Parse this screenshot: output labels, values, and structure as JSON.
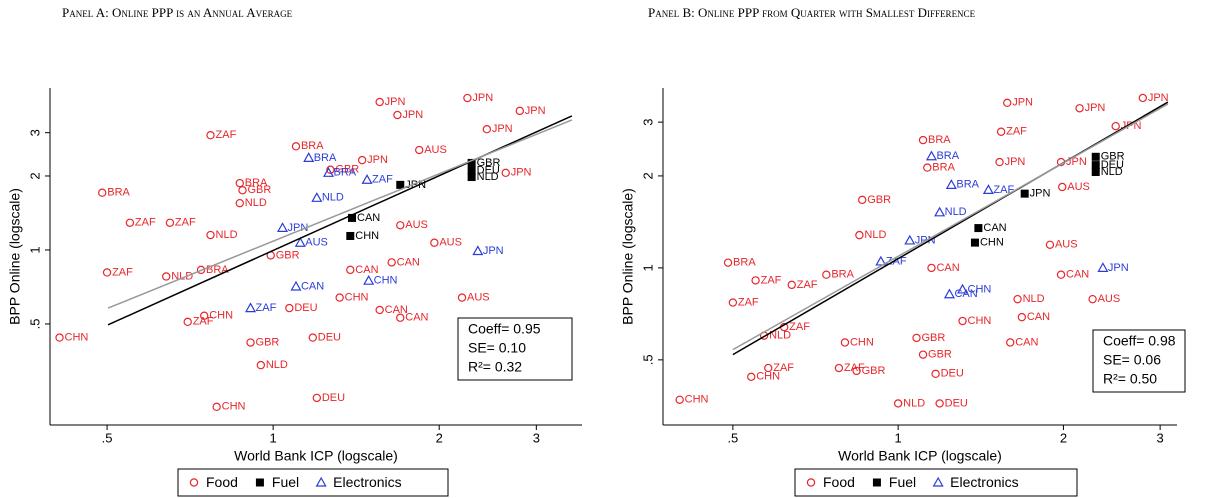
{
  "chart_data": [
    {
      "type": "scatter",
      "title": "Panel A: Online PPP is an Annual Average",
      "xlabel": "World Bank ICP (logscale)",
      "ylabel": "BPP Online (logscale)",
      "xscale": "log",
      "yscale": "log",
      "xlim": [
        0.394,
        3.63
      ],
      "ylim": [
        0.194,
        4.56
      ],
      "xticks": [
        {
          "value": 0.5,
          "label": ".5"
        },
        1,
        2,
        3
      ],
      "yticks": [
        {
          "value": 0.5,
          "label": ".5"
        },
        1,
        2,
        3
      ],
      "series": [
        {
          "name": "Food",
          "color": "#e8262b",
          "marker": "circle",
          "labels": [
            "CHN",
            "BRA",
            "ZAF",
            "ZAF",
            "ZAF",
            "ZAF",
            "NLD",
            "ZAF",
            "CHN",
            "CHN",
            "GBR",
            "NLD",
            "DEU",
            "DEU",
            "BRA",
            "BRA",
            "GBR",
            "NLD",
            "JPN",
            "JPN",
            "JPN",
            "JPN",
            "JPN",
            "JPN",
            "AUS",
            "AUS",
            "CAN",
            "CAN",
            "AUS",
            "AUS",
            "CHN",
            "CAN",
            "JPN",
            "DEU",
            "NLD",
            "GBR",
            "BRA",
            "CAN",
            "GBR"
          ],
          "x": [
            0.41,
            0.49,
            0.5,
            0.55,
            0.65,
            0.77,
            0.64,
            0.7,
            0.75,
            0.79,
            0.91,
            0.95,
            1.2,
            1.18,
            1.1,
            0.87,
            0.88,
            0.87,
            1.56,
            2.25,
            2.8,
            1.68,
            2.44,
            2.64,
            1.84,
            2.2,
            1.7,
            1.56,
            1.7,
            1.96,
            1.32,
            1.38,
            1.45,
            1.07,
            0.77,
            0.99,
            0.74,
            1.64,
            1.27
          ],
          "values": [
            0.44,
            1.71,
            0.81,
            1.29,
            1.29,
            2.93,
            0.78,
            0.51,
            0.54,
            0.23,
            0.42,
            0.34,
            0.25,
            0.44,
            2.64,
            1.87,
            1.75,
            1.55,
            4.0,
            4.15,
            3.68,
            3.54,
            3.1,
            2.06,
            2.55,
            0.64,
            0.53,
            0.57,
            1.26,
            1.07,
            0.64,
            0.83,
            2.32,
            0.58,
            1.15,
            0.95,
            0.83,
            0.89,
            2.12
          ]
        },
        {
          "name": "Fuel",
          "color": "#000000",
          "marker": "square",
          "labels": [
            "GBR",
            "DEU",
            "NLD",
            "JPN",
            "CAN",
            "CHN"
          ],
          "x": [
            2.29,
            2.29,
            2.29,
            1.7,
            1.39,
            1.38
          ],
          "values": [
            2.26,
            2.1,
            1.98,
            1.84,
            1.35,
            1.14
          ]
        },
        {
          "name": "Electronics",
          "color": "#2b3dd8",
          "marker": "triangle",
          "labels": [
            "JPN",
            "BRA",
            "BRA",
            "ZAF",
            "NLD",
            "ZAF",
            "CAN",
            "CHN",
            "JPN",
            "AUS"
          ],
          "x": [
            2.35,
            1.16,
            1.26,
            1.48,
            1.2,
            0.91,
            1.1,
            1.49,
            1.04,
            1.12
          ],
          "values": [
            0.99,
            2.37,
            2.06,
            1.93,
            1.63,
            0.58,
            0.71,
            0.75,
            1.23,
            1.07
          ]
        }
      ],
      "fit_lines": [
        {
          "color": "#000000",
          "x": [
            0.502,
            3.48
          ],
          "values": [
            0.496,
            3.51
          ]
        },
        {
          "color": "#999999",
          "x": [
            0.502,
            3.48
          ],
          "values": [
            0.58,
            3.38
          ]
        }
      ],
      "stats": [
        "Coeff= 0.95",
        "SE= 0.10",
        "R²= 0.32"
      ]
    },
    {
      "type": "scatter",
      "title": "Panel B: Online PPP from Quarter with Smallest Difference",
      "xlabel": "World Bank ICP (logscale)",
      "ylabel": "BPP Online (logscale)",
      "xscale": "log",
      "yscale": "log",
      "xlim": [
        0.373,
        3.22
      ],
      "ylim": [
        0.306,
        3.88
      ],
      "xticks": [
        {
          "value": 0.5,
          "label": ".5"
        },
        1,
        2,
        3
      ],
      "yticks": [
        {
          "value": 0.5,
          "label": ".5"
        },
        1,
        2,
        3
      ],
      "series": [
        {
          "name": "Food",
          "color": "#e8262b",
          "marker": "circle",
          "labels": [
            "CHN",
            "BRA",
            "ZAF",
            "ZAF",
            "ZAF",
            "NLD",
            "ZAF",
            "CHN",
            "ZAF",
            "ZAF",
            "CHN",
            "GBR",
            "NLD",
            "DEU",
            "DEU",
            "GBR",
            "GBR",
            "BRA",
            "BRA",
            "GBR",
            "JPN",
            "JPN",
            "JPN",
            "JPN",
            "ZAF",
            "AUS",
            "CAN",
            "CAN",
            "NLD",
            "JPN",
            "JPN",
            "AUS",
            "CAN",
            "AUS",
            "NLD",
            "CHN",
            "CAN",
            "BRA"
          ],
          "x": [
            0.4,
            0.49,
            0.5,
            0.55,
            0.64,
            0.57,
            0.62,
            0.54,
            0.58,
            0.78,
            0.8,
            0.84,
            1.0,
            1.19,
            1.17,
            1.11,
            1.08,
            1.11,
            1.13,
            0.86,
            1.58,
            2.14,
            2.79,
            2.49,
            1.54,
            2.26,
            1.6,
            1.68,
            1.65,
            1.98,
            1.53,
            1.89,
            1.98,
            1.99,
            0.85,
            1.31,
            1.15,
            0.74
          ],
          "values": [
            0.37,
            1.04,
            0.77,
            0.91,
            0.88,
            0.6,
            0.64,
            0.44,
            0.47,
            0.47,
            0.57,
            0.46,
            0.36,
            0.36,
            0.45,
            0.52,
            0.59,
            2.62,
            2.13,
            1.67,
            3.47,
            3.33,
            3.6,
            2.91,
            2.79,
            0.79,
            0.57,
            0.69,
            0.79,
            2.22,
            2.22,
            1.19,
            0.95,
            1.84,
            1.28,
            0.67,
            1.0,
            0.95
          ]
        },
        {
          "name": "Fuel",
          "color": "#000000",
          "marker": "square",
          "labels": [
            "GBR",
            "DEU",
            "NLD",
            "JPN",
            "CAN",
            "CHN"
          ],
          "x": [
            2.29,
            2.29,
            2.29,
            1.7,
            1.4,
            1.38
          ],
          "values": [
            2.31,
            2.17,
            2.06,
            1.75,
            1.35,
            1.21
          ]
        },
        {
          "name": "Electronics",
          "color": "#2b3dd8",
          "marker": "triangle",
          "labels": [
            "JPN",
            "BRA",
            "BRA",
            "ZAF",
            "NLD",
            "ZAF",
            "CAN",
            "CHN",
            "JPN"
          ],
          "x": [
            2.36,
            1.15,
            1.25,
            1.46,
            1.19,
            0.93,
            1.24,
            1.31,
            1.05
          ],
          "values": [
            1.0,
            2.32,
            1.87,
            1.8,
            1.52,
            1.05,
            0.82,
            0.85,
            1.23
          ]
        }
      ],
      "fit_lines": [
        {
          "color": "#000000",
          "x": [
            0.5,
            3.1
          ],
          "values": [
            0.52,
            3.49
          ]
        },
        {
          "color": "#999999",
          "x": [
            0.5,
            3.1
          ],
          "values": [
            0.54,
            3.44
          ]
        }
      ],
      "stats": [
        "Coeff= 0.98",
        "SE= 0.06",
        "R²= 0.50"
      ]
    }
  ]
}
